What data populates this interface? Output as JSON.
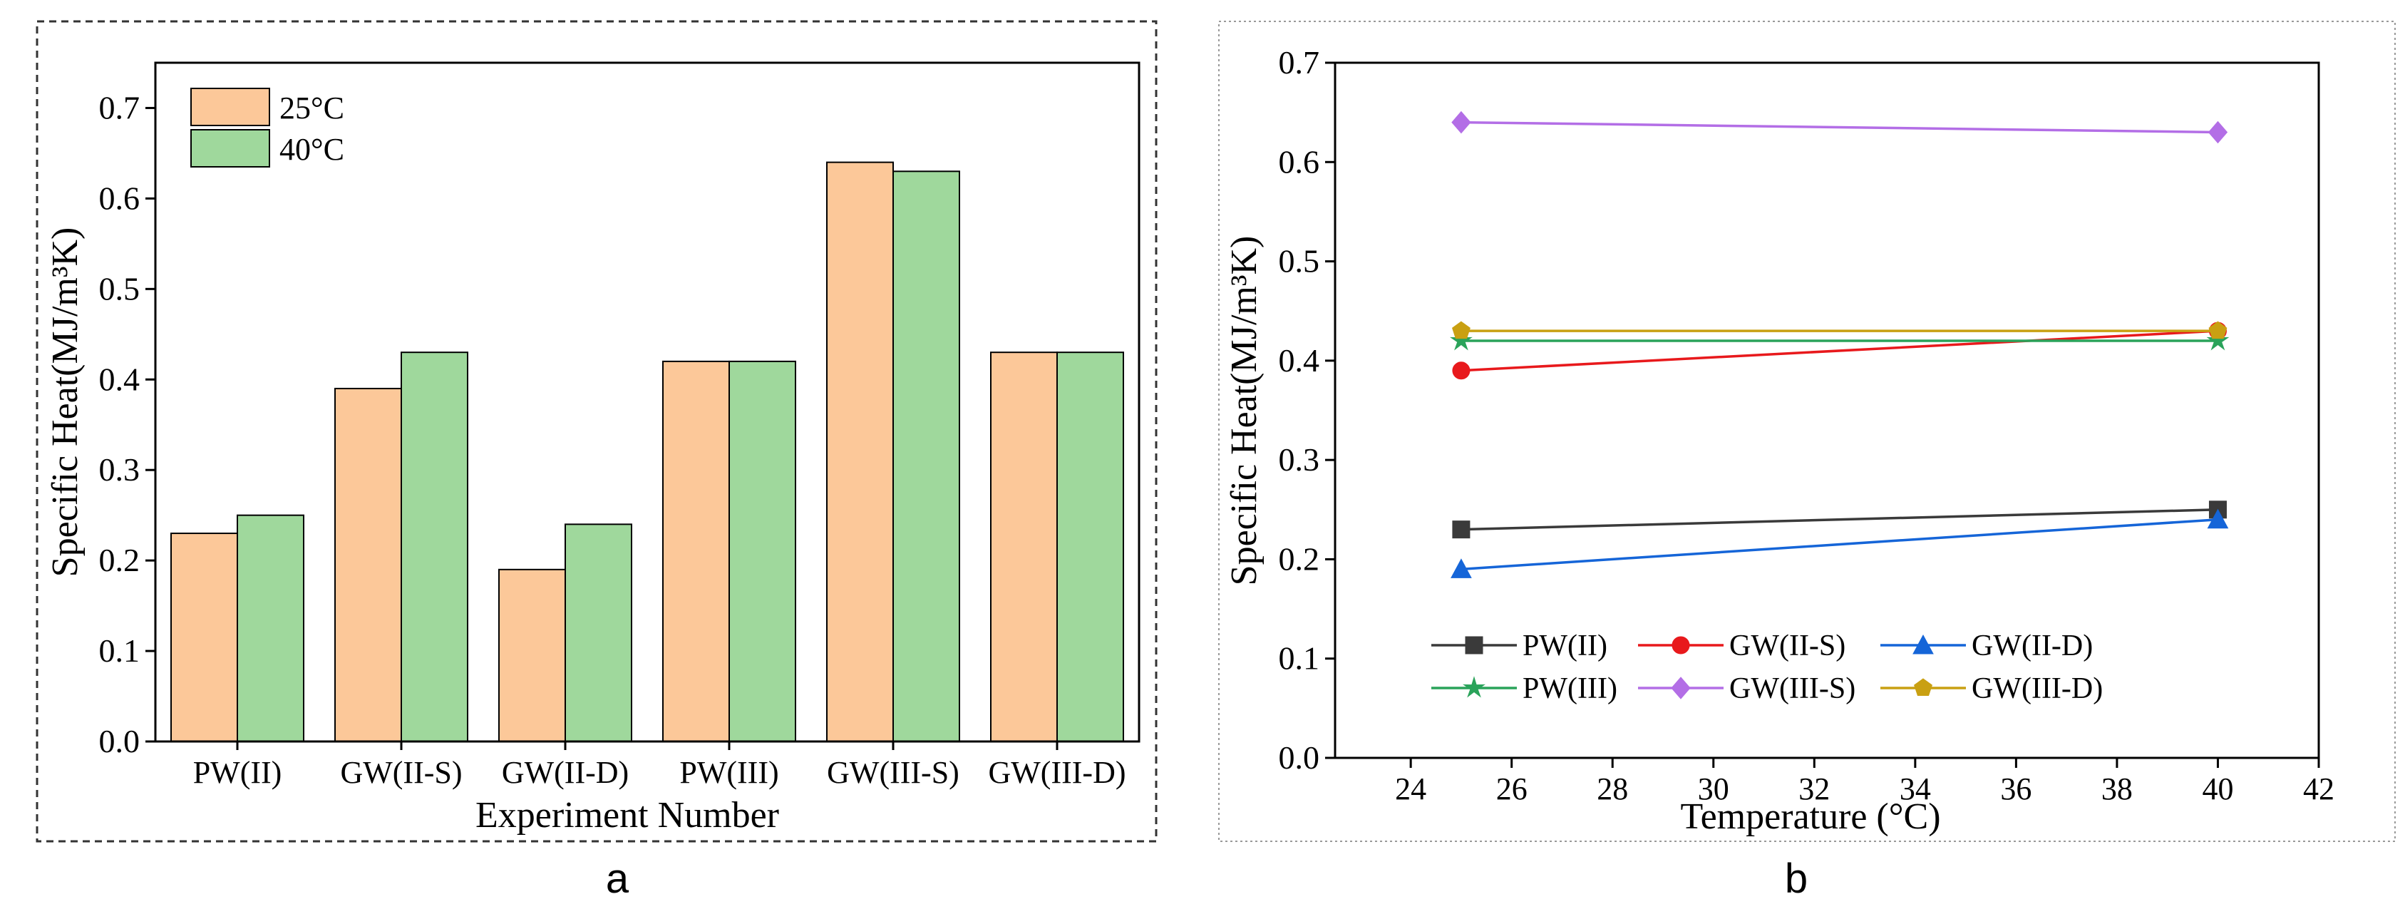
{
  "panels": {
    "a": {
      "label": "a"
    },
    "b": {
      "label": "b"
    }
  },
  "chart_data": [
    {
      "type": "bar",
      "title": "",
      "xlabel": "Experiment Number",
      "ylabel": "Specific Heat(MJ/m³K)",
      "ylim": [
        0,
        0.75
      ],
      "yticks": [
        "0.0",
        "0.1",
        "0.2",
        "0.3",
        "0.4",
        "0.5",
        "0.6",
        "0.7"
      ],
      "categories": [
        "PW(II)",
        "GW(II-S)",
        "GW(II-D)",
        "PW(III)",
        "GW(III-S)",
        "GW(III-D)"
      ],
      "series": [
        {
          "name": "25°C",
          "color": "#fcc899",
          "values": [
            0.23,
            0.39,
            0.19,
            0.42,
            0.64,
            0.43
          ]
        },
        {
          "name": "40°C",
          "color": "#9fd89c",
          "values": [
            0.25,
            0.43,
            0.24,
            0.42,
            0.63,
            0.43
          ]
        }
      ],
      "legend": "top-left",
      "grid": false
    },
    {
      "type": "line",
      "title": "",
      "xlabel": "Temperature (°C)",
      "ylabel": "Specific Heat(MJ/m³K)",
      "xlim": [
        22.5,
        42
      ],
      "ylim": [
        0,
        0.7
      ],
      "xticks": [
        "24",
        "26",
        "28",
        "30",
        "32",
        "34",
        "36",
        "38",
        "40",
        "42"
      ],
      "yticks": [
        "0.0",
        "0.1",
        "0.2",
        "0.3",
        "0.4",
        "0.5",
        "0.6",
        "0.7"
      ],
      "x": [
        25,
        40
      ],
      "series": [
        {
          "name": "PW(II)",
          "color": "#3a3a3a",
          "marker": "square",
          "values": [
            0.23,
            0.25
          ]
        },
        {
          "name": "GW(II-S)",
          "color": "#e8191c",
          "marker": "circle",
          "values": [
            0.39,
            0.43
          ]
        },
        {
          "name": "GW(II-D)",
          "color": "#1565d8",
          "marker": "triangle",
          "values": [
            0.19,
            0.24
          ]
        },
        {
          "name": "PW(III)",
          "color": "#2aa35a",
          "marker": "star",
          "values": [
            0.42,
            0.42
          ]
        },
        {
          "name": "GW(III-S)",
          "color": "#b36ee6",
          "marker": "diamond",
          "values": [
            0.64,
            0.63
          ]
        },
        {
          "name": "GW(III-D)",
          "color": "#c9a012",
          "marker": "pentagon",
          "values": [
            0.43,
            0.43
          ]
        }
      ],
      "legend": "bottom-left",
      "grid": false
    }
  ]
}
